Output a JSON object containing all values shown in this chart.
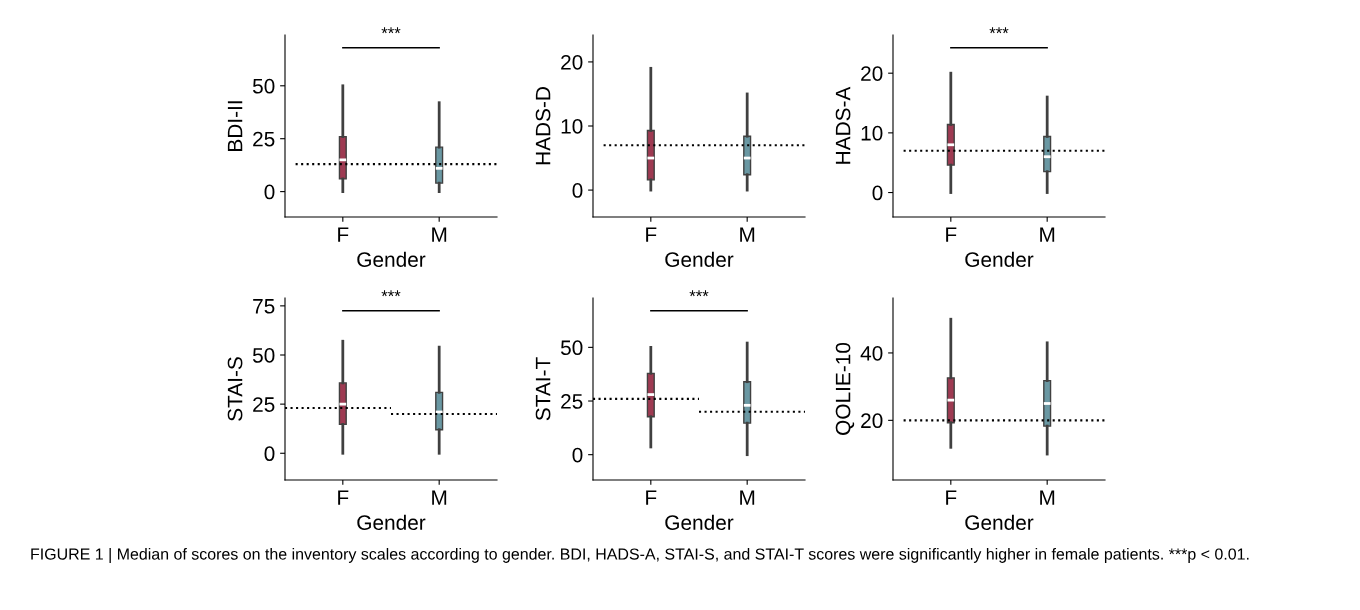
{
  "chart_data": [
    {
      "type": "box",
      "ylabel": "BDI-II",
      "xlabel": "Gender",
      "categories": [
        "F",
        "M"
      ],
      "colors": [
        "#9e3a52",
        "#6a98a3"
      ],
      "ylim": [
        -12,
        74
      ],
      "yticks": [
        0,
        25,
        50
      ],
      "annotations": [
        "***"
      ],
      "boxes": [
        {
          "low": 0,
          "q1": 6,
          "median": 15,
          "q3": 26,
          "high": 50
        },
        {
          "low": 0,
          "q1": 4,
          "median": 11,
          "q3": 21,
          "high": 42
        }
      ],
      "ref_lines": [
        {
          "axis": "y",
          "value": 13,
          "line_style": "dotted",
          "color": "#000000"
        }
      ]
    },
    {
      "type": "box",
      "ylabel": "HADS-D",
      "xlabel": "Gender",
      "categories": [
        "F",
        "M"
      ],
      "colors": [
        "#9e3a52",
        "#6a98a3"
      ],
      "ylim": [
        -4.2,
        24.2
      ],
      "yticks": [
        0,
        10,
        20
      ],
      "boxes": [
        {
          "low": 0,
          "q1": 1.6,
          "median": 5,
          "q3": 9.3,
          "high": 19
        },
        {
          "low": 0,
          "q1": 2.4,
          "median": 5,
          "q3": 8.4,
          "high": 15
        }
      ],
      "ref_lines": [
        {
          "axis": "y",
          "value": 7,
          "line_style": "dotted",
          "color": "#000000"
        }
      ]
    },
    {
      "type": "box",
      "ylabel": "HADS-A",
      "xlabel": "Gender",
      "categories": [
        "F",
        "M"
      ],
      "colors": [
        "#9e3a52",
        "#6a98a3"
      ],
      "ylim": [
        -4.1,
        26.4
      ],
      "yticks": [
        0,
        10,
        20
      ],
      "annotations": [
        "***"
      ],
      "boxes": [
        {
          "low": 0,
          "q1": 4.6,
          "median": 8,
          "q3": 11.4,
          "high": 20
        },
        {
          "low": 0,
          "q1": 3.5,
          "median": 6,
          "q3": 9.4,
          "high": 16
        }
      ],
      "ref_lines": [
        {
          "axis": "y",
          "value": 7,
          "line_style": "dotted",
          "color": "#000000"
        }
      ]
    },
    {
      "type": "box",
      "ylabel": "STAI-S",
      "xlabel": "Gender",
      "categories": [
        "F",
        "M"
      ],
      "colors": [
        "#9e3a52",
        "#6a98a3"
      ],
      "ylim": [
        -13.6,
        79
      ],
      "yticks": [
        0,
        25,
        50,
        75
      ],
      "annotations": [
        "***"
      ],
      "boxes": [
        {
          "low": 0,
          "q1": 14.7,
          "median": 25,
          "q3": 35.8,
          "high": 57
        },
        {
          "low": 0,
          "q1": 12,
          "median": 21,
          "q3": 31,
          "high": 54
        }
      ],
      "ref_lines": [
        {
          "axis": "y",
          "value": 23,
          "line_style": "dotted",
          "color": "#000000"
        },
        {
          "axis": "y",
          "value": 20,
          "line_style": "dotted",
          "color": "#000000"
        }
      ]
    },
    {
      "type": "box",
      "ylabel": "STAI-T",
      "xlabel": "Gender",
      "categories": [
        "F",
        "M"
      ],
      "colors": [
        "#9e3a52",
        "#6a98a3"
      ],
      "ylim": [
        -11.8,
        73
      ],
      "yticks": [
        0,
        25,
        50
      ],
      "annotations": [
        "***"
      ],
      "boxes": [
        {
          "low": 3.6,
          "q1": 17.7,
          "median": 28,
          "q3": 37.9,
          "high": 50
        },
        {
          "low": 0,
          "q1": 14.7,
          "median": 23,
          "q3": 34,
          "high": 52
        }
      ],
      "ref_lines": [
        {
          "axis": "y",
          "value": 26,
          "line_style": "dotted",
          "color": "#000000"
        },
        {
          "axis": "y",
          "value": 20,
          "line_style": "dotted",
          "color": "#000000"
        }
      ]
    },
    {
      "type": "box",
      "ylabel": "QOLIE-10",
      "xlabel": "Gender",
      "categories": [
        "F",
        "M"
      ],
      "colors": [
        "#9e3a52",
        "#6a98a3"
      ],
      "ylim": [
        2.3,
        56.3
      ],
      "yticks": [
        20,
        40
      ],
      "boxes": [
        {
          "low": 12,
          "q1": 19.3,
          "median": 26,
          "q3": 32.6,
          "high": 50
        },
        {
          "low": 10,
          "q1": 18.3,
          "median": 25,
          "q3": 31.8,
          "high": 43
        }
      ],
      "ref_lines": [
        {
          "axis": "y",
          "value": 20,
          "line_style": "dotted",
          "color": "#000000"
        }
      ],
      "subtitle": "FIGURE 1 | Median of scores on the inventory scales according to gender. BDI, HADS-A, STAI-S, and STAI-T scores were significantly higher in female patients. ***p < 0.01."
    }
  ]
}
